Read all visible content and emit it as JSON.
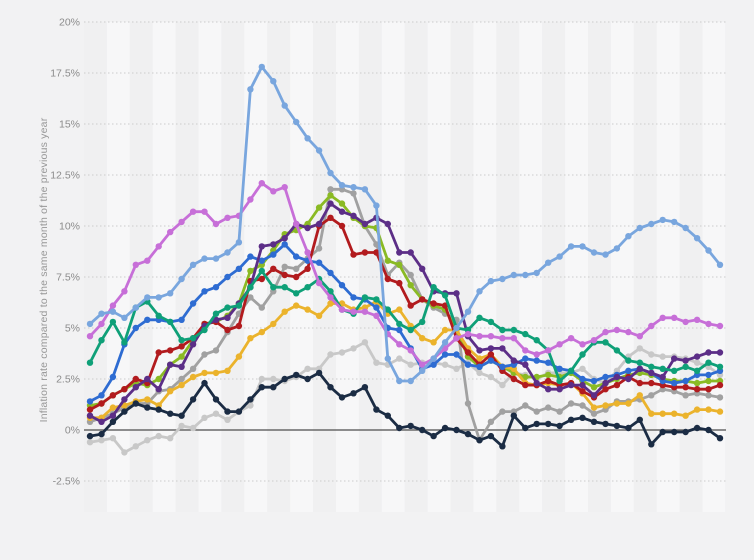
{
  "page": {
    "background_color": "#f2f2f3",
    "plot_band_light": "#f7f7f8",
    "plot_band_dark": "#f0f0f1",
    "gridline_color": "#cbcbcb",
    "zero_line_color": "#4d4d4d"
  },
  "chart": {
    "y_axis": {
      "title": "Inflation rate compared to the same month of the previous year",
      "tick_labels": [
        "20%",
        "17.5%",
        "15%",
        "12.5%",
        "10%",
        "7.5%",
        "5%",
        "2.5%",
        "0%",
        "-2.5%"
      ],
      "tick_values": [
        20,
        17.5,
        15,
        12.5,
        10,
        7.5,
        5,
        2.5,
        0,
        -2.5
      ]
    },
    "x_axis": {
      "labels_visible": false,
      "n_points": 56
    },
    "legend": {
      "visible": false
    }
  },
  "chart_data": {
    "type": "line",
    "ylabel": "Inflation rate compared to the same month of the previous year",
    "ylim": [
      -2.5,
      20
    ],
    "y_ticks": [
      -2.5,
      0,
      2.5,
      5,
      7.5,
      10,
      12.5,
      15,
      17.5,
      20
    ],
    "grid": "dotted horizontal gridlines, solid zero line, alternating vertical background bands",
    "legend_position": "none visible",
    "n_points": 56,
    "x_description": "56 consecutive monthly observations; x-axis tick labels not visible in screenshot",
    "series": [
      {
        "name": "light-gray-series",
        "color": "#c8c8c8",
        "values": [
          -0.6,
          -0.5,
          -0.4,
          -1.1,
          -0.8,
          -0.5,
          -0.3,
          -0.4,
          0.2,
          0.1,
          0.6,
          0.8,
          0.5,
          0.9,
          1.2,
          2.5,
          2.5,
          2.4,
          2.6,
          3.0,
          3.0,
          3.7,
          3.8,
          4.0,
          4.3,
          3.3,
          3.2,
          3.5,
          3.2,
          3.3,
          3.3,
          3.2,
          3.0,
          3.3,
          2.8,
          2.6,
          2.2,
          2.8,
          2.7,
          2.5,
          2.8,
          2.8,
          2.8,
          3.0,
          2.5,
          2.3,
          2.9,
          3.6,
          4.0,
          3.7,
          3.6,
          3.6,
          3.5,
          3.3,
          3.1,
          2.7
        ]
      },
      {
        "name": "gray-series",
        "color": "#a1a1a1",
        "values": [
          0.4,
          0.6,
          0.8,
          1.1,
          1.3,
          1.3,
          1.9,
          2.0,
          2.5,
          3.0,
          3.7,
          3.9,
          4.8,
          5.7,
          6.5,
          6.0,
          6.8,
          8.0,
          7.9,
          8.4,
          8.9,
          11.8,
          11.8,
          11.6,
          10.0,
          9.1,
          7.6,
          8.2,
          7.6,
          6.4,
          6.0,
          5.7,
          5.4,
          1.3,
          -0.5,
          0.4,
          0.9,
          0.9,
          1.2,
          0.9,
          1.1,
          0.9,
          1.3,
          1.2,
          0.8,
          1.0,
          1.4,
          1.4,
          1.5,
          1.7,
          2.0,
          1.9,
          1.7,
          1.8,
          1.7,
          1.6
        ]
      },
      {
        "name": "lime-green-series",
        "color": "#8aba24",
        "values": [
          1.2,
          1.3,
          1.7,
          2.0,
          2.3,
          2.2,
          2.5,
          3.2,
          3.6,
          4.4,
          5.2,
          5.3,
          5.6,
          6.2,
          7.8,
          8.1,
          8.8,
          9.6,
          9.8,
          10.1,
          10.9,
          11.5,
          11.1,
          10.4,
          10.0,
          9.9,
          8.3,
          8.1,
          7.1,
          6.4,
          6.1,
          5.9,
          4.9,
          3.6,
          3.1,
          3.4,
          3.1,
          2.8,
          2.6,
          2.6,
          2.7,
          2.6,
          2.8,
          2.4,
          2.1,
          2.3,
          2.5,
          2.7,
          2.8,
          2.7,
          2.5,
          2.4,
          2.4,
          2.3,
          2.4,
          2.4
        ]
      },
      {
        "name": "gold-series",
        "color": "#ebb32c",
        "values": [
          0.6,
          0.6,
          1.1,
          1.2,
          1.4,
          1.5,
          1.2,
          1.9,
          2.2,
          2.6,
          2.8,
          2.8,
          2.9,
          3.6,
          4.5,
          4.8,
          5.2,
          5.8,
          6.1,
          5.9,
          5.6,
          6.2,
          6.2,
          5.9,
          6.0,
          6.3,
          5.7,
          5.9,
          5.1,
          4.5,
          4.3,
          4.9,
          4.9,
          4.0,
          3.5,
          3.7,
          3.1,
          3.0,
          2.3,
          2.2,
          2.3,
          2.2,
          2.3,
          1.8,
          1.1,
          1.2,
          1.3,
          1.3,
          1.7,
          0.8,
          0.8,
          0.8,
          0.7,
          1.0,
          1.0,
          0.9
        ]
      },
      {
        "name": "dark-red-series",
        "color": "#b21b1e",
        "values": [
          1.0,
          1.3,
          1.7,
          2.0,
          2.5,
          2.3,
          3.8,
          3.9,
          4.1,
          4.5,
          5.2,
          5.3,
          4.9,
          5.1,
          7.3,
          7.4,
          7.9,
          7.6,
          7.5,
          7.9,
          10.0,
          10.4,
          10.0,
          8.6,
          8.7,
          8.7,
          7.4,
          7.2,
          6.1,
          6.4,
          6.2,
          6.1,
          4.5,
          3.8,
          3.2,
          3.7,
          2.9,
          2.5,
          2.2,
          2.2,
          2.4,
          2.2,
          2.3,
          1.9,
          1.6,
          2.0,
          2.2,
          2.6,
          2.3,
          2.3,
          2.2,
          2.1,
          2.1,
          2.0,
          2.0,
          2.2
        ]
      },
      {
        "name": "blue-series",
        "color": "#2e6cd2",
        "values": [
          1.4,
          1.7,
          2.6,
          4.2,
          5.0,
          5.4,
          5.4,
          5.3,
          5.4,
          6.2,
          6.8,
          7.0,
          7.5,
          7.9,
          8.5,
          8.3,
          8.6,
          9.1,
          8.5,
          8.3,
          8.2,
          7.7,
          7.1,
          6.5,
          6.4,
          6.0,
          5.0,
          4.9,
          4.0,
          3.0,
          3.2,
          3.7,
          3.7,
          3.2,
          3.1,
          3.4,
          3.1,
          3.2,
          3.5,
          3.4,
          3.3,
          3.0,
          2.9,
          2.5,
          2.4,
          2.6,
          2.7,
          2.9,
          3.0,
          2.8,
          2.4,
          2.3,
          2.4,
          2.7,
          2.7,
          2.9
        ]
      },
      {
        "name": "dark-purple-series",
        "color": "#5c2e87",
        "values": [
          0.7,
          0.4,
          0.7,
          1.5,
          2.1,
          2.5,
          2.0,
          3.2,
          3.1,
          4.2,
          5.1,
          5.4,
          5.5,
          6.2,
          7.0,
          9.0,
          9.1,
          9.4,
          10.1,
          9.9,
          10.1,
          11.1,
          10.7,
          10.5,
          10.1,
          10.4,
          10.1,
          8.7,
          8.7,
          7.9,
          6.8,
          6.7,
          6.7,
          4.6,
          3.9,
          4.0,
          4.0,
          3.4,
          3.2,
          2.3,
          2.0,
          2.0,
          2.2,
          2.2,
          1.7,
          2.3,
          2.6,
          2.5,
          3.0,
          2.8,
          2.6,
          3.5,
          3.4,
          3.6,
          3.8,
          3.8
        ]
      },
      {
        "name": "teal-green-series",
        "color": "#0fa078",
        "values": [
          3.3,
          4.4,
          5.3,
          4.3,
          6.0,
          6.3,
          5.6,
          5.3,
          4.4,
          4.5,
          4.9,
          5.7,
          6.0,
          6.1,
          7.0,
          7.8,
          7.0,
          7.0,
          6.7,
          7.0,
          7.4,
          6.8,
          5.9,
          5.7,
          6.5,
          6.4,
          5.9,
          5.2,
          4.9,
          5.3,
          7.0,
          6.6,
          5.0,
          4.9,
          5.5,
          5.3,
          4.9,
          4.9,
          4.7,
          4.4,
          3.9,
          2.4,
          2.9,
          3.7,
          4.3,
          4.3,
          3.9,
          3.4,
          3.3,
          3.1,
          3.0,
          2.9,
          3.1,
          2.9,
          3.3,
          3.1
        ]
      },
      {
        "name": "dark-navy-series",
        "color": "#1b2c44",
        "values": [
          -0.3,
          -0.2,
          0.4,
          0.9,
          1.3,
          1.1,
          1.0,
          0.8,
          0.7,
          1.5,
          2.3,
          1.5,
          0.9,
          0.9,
          1.5,
          2.1,
          2.1,
          2.5,
          2.7,
          2.5,
          2.8,
          2.1,
          1.6,
          1.8,
          2.1,
          1.0,
          0.7,
          0.1,
          0.2,
          0.0,
          -0.3,
          0.1,
          0.0,
          -0.2,
          -0.5,
          -0.3,
          -0.8,
          0.7,
          0.1,
          0.3,
          0.3,
          0.2,
          0.5,
          0.6,
          0.4,
          0.3,
          0.2,
          0.1,
          0.5,
          -0.7,
          -0.1,
          -0.1,
          -0.1,
          0.1,
          0.0,
          -0.4
        ]
      },
      {
        "name": "magenta-series",
        "color": "#c76fd8",
        "values": [
          4.6,
          5.2,
          6.1,
          6.8,
          8.1,
          8.3,
          9.0,
          9.7,
          10.2,
          10.7,
          10.7,
          10.1,
          10.4,
          10.5,
          11.3,
          12.1,
          11.7,
          11.9,
          10.1,
          8.7,
          7.2,
          6.5,
          5.9,
          5.8,
          5.8,
          5.6,
          4.7,
          4.2,
          3.9,
          3.2,
          3.5,
          4.0,
          4.5,
          4.7,
          4.6,
          4.6,
          4.5,
          4.5,
          3.9,
          3.7,
          3.9,
          4.2,
          4.5,
          4.2,
          4.4,
          4.8,
          4.9,
          4.8,
          4.6,
          5.1,
          5.5,
          5.5,
          5.3,
          5.4,
          5.2,
          5.1
        ]
      },
      {
        "name": "light-blue-series",
        "color": "#79a6de",
        "values": [
          5.2,
          5.7,
          5.8,
          5.5,
          6.0,
          6.5,
          6.5,
          6.7,
          7.4,
          8.1,
          8.4,
          8.4,
          8.7,
          9.2,
          16.7,
          17.8,
          17.1,
          15.9,
          15.1,
          14.3,
          13.7,
          12.6,
          12.0,
          11.9,
          11.8,
          11.0,
          3.5,
          2.4,
          2.4,
          2.9,
          3.5,
          4.3,
          5.0,
          5.8,
          6.8,
          7.3,
          7.4,
          7.6,
          7.6,
          7.7,
          8.2,
          8.5,
          9.0,
          9.0,
          8.7,
          8.6,
          8.9,
          9.5,
          9.9,
          10.1,
          10.3,
          10.2,
          9.9,
          9.4,
          8.8,
          8.1
        ]
      }
    ]
  }
}
